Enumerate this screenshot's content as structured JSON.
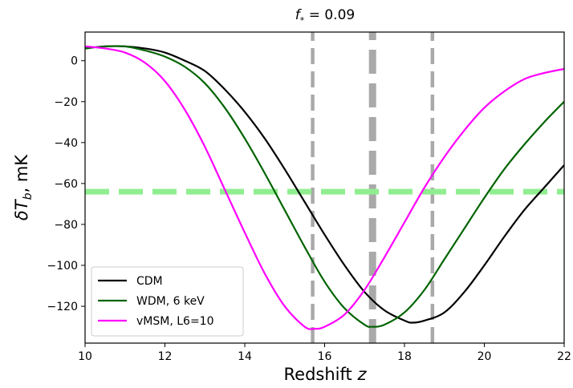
{
  "chart_data": {
    "type": "line",
    "title_parts": {
      "var": "f",
      "sub": "*",
      "rest": " = 0.09"
    },
    "xlabel_parts": {
      "text": "Redshift ",
      "var": "z"
    },
    "ylabel_parts": {
      "delta": "δ",
      "var": "T",
      "sub": "b",
      "rest": ", mK"
    },
    "xlim": [
      10,
      22
    ],
    "ylim": [
      -138,
      14
    ],
    "xticks": [
      10,
      12,
      14,
      16,
      18,
      20,
      22
    ],
    "yticks": [
      0,
      -20,
      -40,
      -60,
      -80,
      -100,
      -120
    ],
    "grid": false,
    "legend_position": "lower-left",
    "series": [
      {
        "name": "CDM",
        "color": "#000000",
        "x": [
          10,
          10.5,
          11,
          11.5,
          12,
          12.5,
          13,
          13.5,
          14,
          14.5,
          15,
          15.5,
          16,
          16.5,
          17,
          17.5,
          18,
          18.2,
          18.5,
          19,
          19.5,
          20,
          20.5,
          21,
          21.5,
          22
        ],
        "y": [
          6,
          7,
          7,
          6,
          4,
          0,
          -5,
          -14,
          -25,
          -38,
          -53,
          -69,
          -85,
          -100,
          -113,
          -122,
          -127,
          -128,
          -127,
          -123,
          -113,
          -100,
          -86,
          -73,
          -62,
          -51
        ]
      },
      {
        "name": "WDM, 6 keV",
        "color": "#006400",
        "x": [
          10,
          10.5,
          11,
          11.5,
          12,
          12.5,
          13,
          13.5,
          14,
          14.5,
          15,
          15.5,
          16,
          16.5,
          17,
          17.2,
          17.5,
          18,
          18.5,
          19,
          19.5,
          20,
          20.5,
          21,
          21.5,
          22
        ],
        "y": [
          6,
          7,
          7,
          5,
          2,
          -3,
          -11,
          -23,
          -38,
          -55,
          -73,
          -91,
          -108,
          -121,
          -129,
          -130,
          -129,
          -123,
          -112,
          -97,
          -82,
          -67,
          -53,
          -41,
          -30,
          -20
        ]
      },
      {
        "name": "vMSM, L6=10",
        "color": "#ff00ff",
        "x": [
          10,
          10.5,
          11,
          11.5,
          12,
          12.5,
          13,
          13.5,
          14,
          14.5,
          15,
          15.5,
          15.75,
          16,
          16.5,
          17,
          17.5,
          18,
          18.5,
          19,
          19.5,
          20,
          20.5,
          21,
          21.5,
          22
        ],
        "y": [
          7,
          6,
          4,
          -1,
          -10,
          -24,
          -42,
          -63,
          -84,
          -104,
          -120,
          -130,
          -131,
          -130,
          -124,
          -112,
          -96,
          -79,
          -62,
          -47,
          -34,
          -23,
          -15,
          -9,
          -6,
          -4
        ]
      }
    ],
    "reference_lines": [
      {
        "orientation": "vertical",
        "x": 15.7,
        "color": "#a9a9a9",
        "style": "dashed",
        "weight": "medium"
      },
      {
        "orientation": "vertical",
        "x": 17.2,
        "color": "#a9a9a9",
        "style": "dashed",
        "weight": "thick"
      },
      {
        "orientation": "vertical",
        "x": 18.7,
        "color": "#a9a9a9",
        "style": "dashed",
        "weight": "medium"
      },
      {
        "orientation": "horizontal",
        "y": -64,
        "color": "#90ee90",
        "style": "dashed",
        "weight": "thick"
      }
    ]
  }
}
